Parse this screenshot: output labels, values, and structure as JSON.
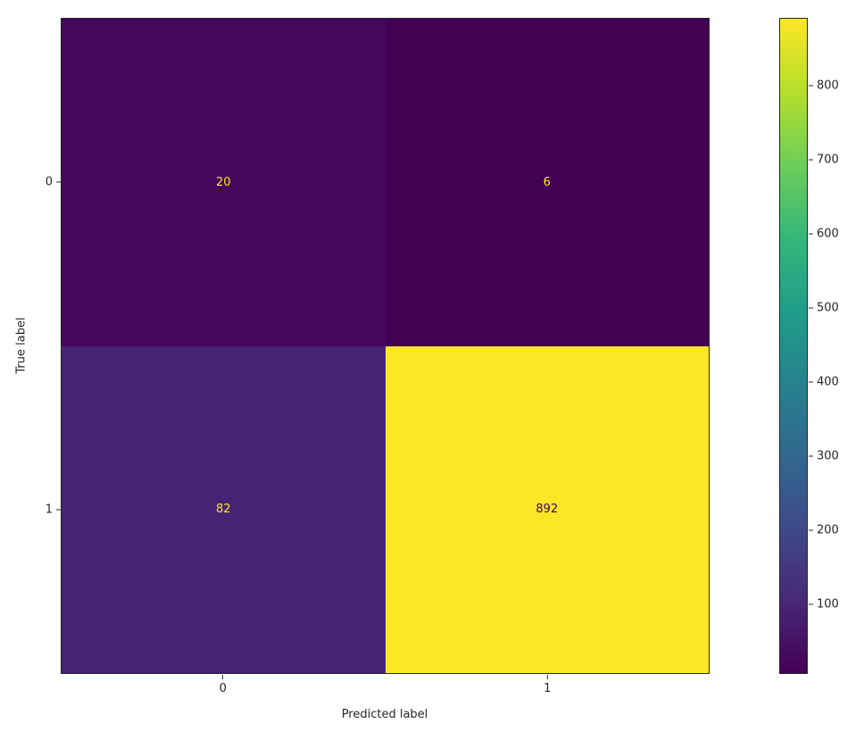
{
  "chart_data": {
    "type": "heatmap",
    "subtype": "confusion_matrix",
    "title": "",
    "xlabel": "Predicted label",
    "ylabel": "True label",
    "x_tick_labels": [
      "0",
      "1"
    ],
    "y_tick_labels": [
      "0",
      "1"
    ],
    "matrix": [
      [
        20,
        6
      ],
      [
        82,
        892
      ]
    ],
    "vmin": 6,
    "vmax": 892,
    "colormap": "viridis",
    "cells": [
      {
        "row": 0,
        "col": 0,
        "value": "20",
        "bg": "#45075a",
        "fg": "#fde725"
      },
      {
        "row": 0,
        "col": 1,
        "value": "6",
        "bg": "#440154",
        "fg": "#fde725"
      },
      {
        "row": 1,
        "col": 0,
        "value": "82",
        "bg": "#472373",
        "fg": "#fde725"
      },
      {
        "row": 1,
        "col": 1,
        "value": "892",
        "bg": "#fde725",
        "fg": "#440154"
      }
    ],
    "colorbar": {
      "ticks": [
        100,
        200,
        300,
        400,
        500,
        600,
        700,
        800
      ],
      "gradient_stops": [
        "#440154",
        "#482878",
        "#3e4a89",
        "#31688e",
        "#26828e",
        "#1f9e89",
        "#35b779",
        "#6ece58",
        "#b5de2b",
        "#fde725"
      ]
    },
    "legend_position": "colorbar-right",
    "grid": false
  }
}
